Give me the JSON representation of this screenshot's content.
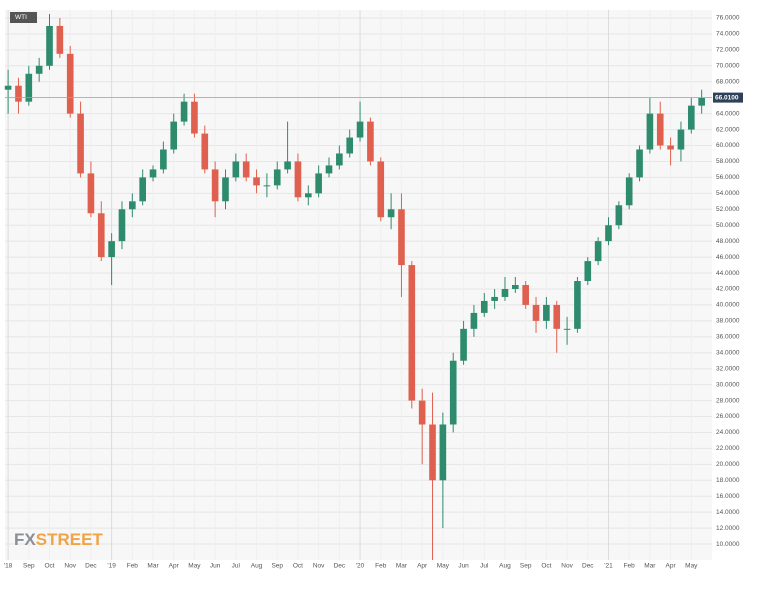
{
  "chart_data": {
    "type": "candlestick",
    "series": [
      {
        "name": "WTI",
        "up_color": "#2e8b6e",
        "down_color": "#e0604f",
        "x": [
          0,
          0.5,
          1,
          1.5,
          2,
          2.5,
          3,
          3.5,
          4,
          4.5,
          5,
          5.5,
          6,
          6.5,
          7,
          7.5,
          8,
          8.5,
          9,
          9.5,
          10,
          10.5,
          11,
          11.5,
          12,
          12.5,
          13,
          13.5,
          14,
          14.5,
          15,
          15.5,
          16,
          16.5,
          17,
          17.5,
          18,
          18.5,
          19,
          19.5,
          20,
          20.5,
          21,
          21.5,
          22,
          22.5,
          23,
          23.5,
          24,
          24.5,
          25,
          25.5,
          26,
          26.5,
          27,
          27.5,
          28,
          28.5,
          29,
          29.5,
          30,
          30.5,
          31,
          31.5,
          32,
          32.5,
          33,
          33.5
        ],
        "open": [
          67,
          67.5,
          65.5,
          69,
          70,
          75,
          71.5,
          64,
          56.5,
          51.5,
          46,
          48,
          52,
          53,
          56,
          57,
          59.5,
          63,
          65.5,
          61.5,
          57,
          53,
          56,
          58,
          56,
          55,
          55,
          57,
          58,
          53.5,
          54,
          56.5,
          57.5,
          59,
          61,
          63,
          58,
          51,
          52,
          45,
          28,
          25,
          18,
          25,
          33,
          37,
          39,
          40.5,
          41,
          42,
          42.5,
          40,
          38,
          40,
          37,
          37,
          43,
          45.5,
          48,
          50,
          52.5,
          56,
          59.5,
          64,
          60,
          59.5,
          62,
          65
        ],
        "high": [
          69.5,
          68.5,
          70,
          71,
          76.5,
          76,
          72.5,
          65.5,
          58,
          53,
          49,
          53,
          54,
          57,
          57.5,
          60.5,
          64,
          66.5,
          66.5,
          62.5,
          58,
          57,
          59,
          59,
          57,
          56.5,
          58,
          63,
          59,
          55,
          57.5,
          58.5,
          60,
          62,
          65.5,
          63.5,
          58.5,
          54,
          54,
          45.5,
          29.5,
          29,
          26.5,
          34,
          38,
          40,
          41.5,
          42,
          43.5,
          43.5,
          43,
          41,
          41,
          40.5,
          38.5,
          43.5,
          46,
          48.5,
          51,
          53,
          56.5,
          60,
          66,
          65.5,
          61,
          63,
          66,
          67
        ],
        "low": [
          64,
          64,
          65,
          68,
          69.5,
          71,
          63.5,
          56,
          51,
          45.5,
          42.5,
          47,
          51,
          52.5,
          55.5,
          56.5,
          59,
          62.5,
          61,
          56.5,
          51,
          52,
          55.5,
          55.5,
          54,
          53.5,
          54.5,
          56.5,
          53,
          52.5,
          53.5,
          56,
          57,
          58.5,
          60.5,
          57.5,
          50.5,
          49.5,
          41,
          27,
          20,
          8,
          12,
          24,
          32.5,
          36,
          38.5,
          39.5,
          40.5,
          41.5,
          39.5,
          36.5,
          37,
          34,
          35,
          36.5,
          42.5,
          45,
          47.5,
          49.5,
          52,
          55.5,
          59,
          59.5,
          57.5,
          58,
          61.5,
          64
        ],
        "close": [
          67.5,
          65.5,
          69,
          70,
          75,
          71.5,
          64,
          56.5,
          51.5,
          46,
          48,
          52,
          53,
          56,
          57,
          59.5,
          63,
          65.5,
          61.5,
          57,
          53,
          56,
          58,
          56,
          55,
          55,
          57,
          58,
          53.5,
          54,
          56.5,
          57.5,
          59,
          61,
          63,
          58,
          51,
          52,
          45,
          28,
          25,
          18,
          25,
          33,
          37,
          39,
          40.5,
          41,
          42,
          42.5,
          40,
          38,
          40,
          37,
          37,
          43,
          45.5,
          48,
          50,
          52.5,
          56,
          59.5,
          64,
          60,
          59.5,
          62,
          65,
          66.01
        ]
      }
    ],
    "last_price": {
      "value": 66.01,
      "label": "66.0100"
    },
    "watermark": [
      "FX",
      "STREET"
    ],
    "xlim": [
      -0.15,
      34
    ],
    "xticks": [
      {
        "value": 0,
        "label": "'18"
      },
      {
        "value": 1,
        "label": "Sep"
      },
      {
        "value": 2,
        "label": "Oct"
      },
      {
        "value": 3,
        "label": "Nov"
      },
      {
        "value": 4,
        "label": "Dec"
      },
      {
        "value": 5,
        "label": "'19"
      },
      {
        "value": 6,
        "label": "Feb"
      },
      {
        "value": 7,
        "label": "Mar"
      },
      {
        "value": 8,
        "label": "Apr"
      },
      {
        "value": 9,
        "label": "May"
      },
      {
        "value": 10,
        "label": "Jun"
      },
      {
        "value": 11,
        "label": "Jul"
      },
      {
        "value": 12,
        "label": "Aug"
      },
      {
        "value": 13,
        "label": "Sep"
      },
      {
        "value": 14,
        "label": "Oct"
      },
      {
        "value": 15,
        "label": "Nov"
      },
      {
        "value": 16,
        "label": "Dec"
      },
      {
        "value": 17,
        "label": "'20"
      },
      {
        "value": 18,
        "label": "Feb"
      },
      {
        "value": 19,
        "label": "Mar"
      },
      {
        "value": 20,
        "label": "Apr"
      },
      {
        "value": 21,
        "label": "May"
      },
      {
        "value": 22,
        "label": "Jun"
      },
      {
        "value": 23,
        "label": "Jul"
      },
      {
        "value": 24,
        "label": "Aug"
      },
      {
        "value": 25,
        "label": "Sep"
      },
      {
        "value": 26,
        "label": "Oct"
      },
      {
        "value": 27,
        "label": "Nov"
      },
      {
        "value": 28,
        "label": "Dec"
      },
      {
        "value": 29,
        "label": "'21"
      },
      {
        "value": 30,
        "label": "Feb"
      },
      {
        "value": 31,
        "label": "Mar"
      },
      {
        "value": 32,
        "label": "Apr"
      },
      {
        "value": 33,
        "label": "May"
      }
    ],
    "ylim": [
      8,
      77
    ],
    "yticks": [
      {
        "value": 10,
        "label": "10.0000"
      },
      {
        "value": 12,
        "label": "12.0000"
      },
      {
        "value": 14,
        "label": "14.0000"
      },
      {
        "value": 16,
        "label": "16.0000"
      },
      {
        "value": 18,
        "label": "18.0000"
      },
      {
        "value": 20,
        "label": "20.0000"
      },
      {
        "value": 22,
        "label": "22.0000"
      },
      {
        "value": 24,
        "label": "24.0000"
      },
      {
        "value": 26,
        "label": "26.0000"
      },
      {
        "value": 28,
        "label": "28.0000"
      },
      {
        "value": 30,
        "label": "30.0000"
      },
      {
        "value": 32,
        "label": "32.0000"
      },
      {
        "value": 34,
        "label": "34.0000"
      },
      {
        "value": 36,
        "label": "36.0000"
      },
      {
        "value": 38,
        "label": "38.0000"
      },
      {
        "value": 40,
        "label": "40.0000"
      },
      {
        "value": 42,
        "label": "42.0000"
      },
      {
        "value": 44,
        "label": "44.0000"
      },
      {
        "value": 46,
        "label": "46.0000"
      },
      {
        "value": 48,
        "label": "48.0000"
      },
      {
        "value": 50,
        "label": "50.0000"
      },
      {
        "value": 52,
        "label": "52.0000"
      },
      {
        "value": 54,
        "label": "54.0000"
      },
      {
        "value": 56,
        "label": "56.0000"
      },
      {
        "value": 58,
        "label": "58.0000"
      },
      {
        "value": 60,
        "label": "60.0000"
      },
      {
        "value": 62,
        "label": "62.0000"
      },
      {
        "value": 64,
        "label": "64.0000"
      },
      {
        "value": 66,
        "label": "66.0000"
      },
      {
        "value": 68,
        "label": "68.0000"
      },
      {
        "value": 70,
        "label": "70.0000"
      },
      {
        "value": 72,
        "label": "72.0000"
      },
      {
        "value": 74,
        "label": "74.0000"
      },
      {
        "value": 76,
        "label": "76.0000"
      }
    ],
    "grid": true
  }
}
